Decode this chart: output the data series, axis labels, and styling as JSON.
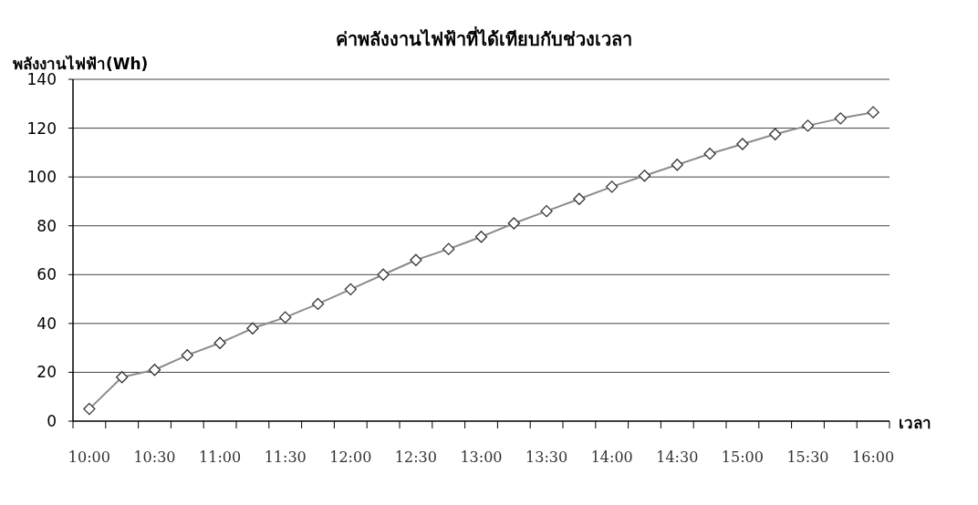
{
  "chart_data": {
    "type": "line",
    "title": "ค่าพลังงานไฟฟ้าที่ได้เทียบกับช่วงเวลา",
    "xlabel": "เวลา",
    "ylabel": "พลังงานไฟฟ้า(Wh)",
    "categories": [
      "10:00",
      null,
      "10:30",
      null,
      "11:00",
      null,
      "11:30",
      null,
      "12:00",
      null,
      "12:30",
      null,
      "13:00",
      null,
      "13:30",
      null,
      "14:00",
      null,
      "14:30",
      null,
      "15:00",
      null,
      "15:30",
      null,
      "16:00"
    ],
    "series": [
      {
        "color": "#8c8c8c",
        "values": [
          5,
          18,
          21,
          27,
          32,
          38,
          42.5,
          48,
          54,
          60,
          66,
          70.5,
          75.5,
          81,
          86,
          91,
          96,
          100.5,
          105,
          109.5,
          113.5,
          117.5,
          121,
          124,
          126.5
        ]
      }
    ],
    "ylim": [
      0,
      140
    ],
    "yticks": [
      0,
      20,
      40,
      60,
      80,
      100,
      120,
      140
    ],
    "grid": "y",
    "marker": "diamond"
  }
}
